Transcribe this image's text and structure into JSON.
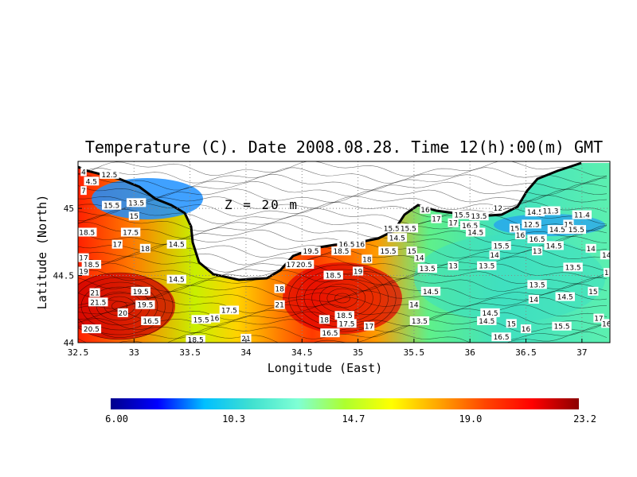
{
  "chart_data": {
    "type": "heatmap",
    "title": "Temperature (C). Date 2008.08.28. Time 12(h):00(m) GMT",
    "xlabel": "Longitude (East)",
    "ylabel": "Latitude (North)",
    "annotation": "Z = 20 m",
    "xlim": [
      32.5,
      37.25
    ],
    "ylim": [
      44.0,
      45.35
    ],
    "x_ticks": [
      32.5,
      33,
      33.5,
      34,
      34.5,
      35,
      35.5,
      36,
      36.5,
      37
    ],
    "x_tick_labels": [
      "32.5",
      "33",
      "33.5",
      "34",
      "34.5",
      "35",
      "35.5",
      "36",
      "36.5",
      "37"
    ],
    "y_ticks": [
      44,
      44.5,
      45
    ],
    "y_tick_labels": [
      "44",
      "44.5",
      "45"
    ],
    "grid": true,
    "colorbar": {
      "min": 6.0,
      "max": 23.2,
      "tick_values": [
        6.0,
        10.3,
        14.7,
        19.0,
        23.2
      ],
      "tick_labels": [
        "6.00",
        "10.3",
        "14.7",
        "19.0",
        "23.2"
      ],
      "colors": [
        "#00008b",
        "#0000ff",
        "#00bfff",
        "#40e0d0",
        "#7fffd4",
        "#adff2f",
        "#ffff00",
        "#ffa500",
        "#ff4500",
        "#ff0000",
        "#8b0000"
      ]
    },
    "contour_labels": [
      {
        "lon": 32.55,
        "lat": 45.27,
        "text": "4"
      },
      {
        "lon": 32.62,
        "lat": 45.2,
        "text": "4.5"
      },
      {
        "lon": 32.78,
        "lat": 45.25,
        "text": "12.5"
      },
      {
        "lon": 32.55,
        "lat": 45.13,
        "text": "7"
      },
      {
        "lon": 33.02,
        "lat": 45.04,
        "text": "13.5"
      },
      {
        "lon": 32.8,
        "lat": 45.02,
        "text": "15.5"
      },
      {
        "lon": 33.0,
        "lat": 44.94,
        "text": "15"
      },
      {
        "lon": 32.58,
        "lat": 44.82,
        "text": "18.5"
      },
      {
        "lon": 32.97,
        "lat": 44.82,
        "text": "17.5"
      },
      {
        "lon": 32.85,
        "lat": 44.73,
        "text": "17"
      },
      {
        "lon": 33.1,
        "lat": 44.7,
        "text": "18"
      },
      {
        "lon": 33.38,
        "lat": 44.73,
        "text": "14.5"
      },
      {
        "lon": 32.55,
        "lat": 44.63,
        "text": "17"
      },
      {
        "lon": 32.62,
        "lat": 44.58,
        "text": "18.5"
      },
      {
        "lon": 32.55,
        "lat": 44.53,
        "text": "19"
      },
      {
        "lon": 33.38,
        "lat": 44.47,
        "text": "14.5"
      },
      {
        "lon": 32.65,
        "lat": 44.37,
        "text": "21"
      },
      {
        "lon": 32.68,
        "lat": 44.3,
        "text": "21.5"
      },
      {
        "lon": 33.06,
        "lat": 44.38,
        "text": "19.5"
      },
      {
        "lon": 33.1,
        "lat": 44.28,
        "text": "19.5"
      },
      {
        "lon": 32.9,
        "lat": 44.22,
        "text": "20"
      },
      {
        "lon": 33.15,
        "lat": 44.16,
        "text": "16.5"
      },
      {
        "lon": 32.62,
        "lat": 44.1,
        "text": "20.5"
      },
      {
        "lon": 33.6,
        "lat": 44.17,
        "text": "15.5"
      },
      {
        "lon": 33.85,
        "lat": 44.24,
        "text": "17.5"
      },
      {
        "lon": 33.72,
        "lat": 44.18,
        "text": "16"
      },
      {
        "lon": 33.55,
        "lat": 44.02,
        "text": "18.5"
      },
      {
        "lon": 34.0,
        "lat": 44.03,
        "text": "21"
      },
      {
        "lon": 34.3,
        "lat": 44.4,
        "text": "18"
      },
      {
        "lon": 34.3,
        "lat": 44.28,
        "text": "21"
      },
      {
        "lon": 34.4,
        "lat": 44.58,
        "text": "17"
      },
      {
        "lon": 34.52,
        "lat": 44.58,
        "text": "20.5"
      },
      {
        "lon": 34.58,
        "lat": 44.68,
        "text": "19.5"
      },
      {
        "lon": 34.9,
        "lat": 44.73,
        "text": "16.5"
      },
      {
        "lon": 35.02,
        "lat": 44.73,
        "text": "16"
      },
      {
        "lon": 34.85,
        "lat": 44.68,
        "text": "18.5"
      },
      {
        "lon": 34.78,
        "lat": 44.5,
        "text": "18.5"
      },
      {
        "lon": 35.0,
        "lat": 44.53,
        "text": "19"
      },
      {
        "lon": 35.08,
        "lat": 44.62,
        "text": "18"
      },
      {
        "lon": 34.7,
        "lat": 44.17,
        "text": "18"
      },
      {
        "lon": 34.9,
        "lat": 44.14,
        "text": "17.5"
      },
      {
        "lon": 34.88,
        "lat": 44.2,
        "text": "18.5"
      },
      {
        "lon": 34.75,
        "lat": 44.07,
        "text": "16.5"
      },
      {
        "lon": 35.1,
        "lat": 44.12,
        "text": "17"
      },
      {
        "lon": 35.3,
        "lat": 44.85,
        "text": "15.5"
      },
      {
        "lon": 35.45,
        "lat": 44.85,
        "text": "15.5"
      },
      {
        "lon": 35.35,
        "lat": 44.78,
        "text": "14.5"
      },
      {
        "lon": 35.27,
        "lat": 44.68,
        "text": "15.5"
      },
      {
        "lon": 35.48,
        "lat": 44.68,
        "text": "15"
      },
      {
        "lon": 35.55,
        "lat": 44.63,
        "text": "14"
      },
      {
        "lon": 35.62,
        "lat": 44.55,
        "text": "13.5"
      },
      {
        "lon": 35.5,
        "lat": 44.28,
        "text": "14"
      },
      {
        "lon": 35.65,
        "lat": 44.38,
        "text": "14.5"
      },
      {
        "lon": 35.55,
        "lat": 44.16,
        "text": "13.5"
      },
      {
        "lon": 35.85,
        "lat": 44.57,
        "text": "13"
      },
      {
        "lon": 35.6,
        "lat": 44.99,
        "text": "16"
      },
      {
        "lon": 35.7,
        "lat": 44.92,
        "text": "17"
      },
      {
        "lon": 35.85,
        "lat": 44.89,
        "text": "17"
      },
      {
        "lon": 35.93,
        "lat": 44.95,
        "text": "15.5"
      },
      {
        "lon": 36.08,
        "lat": 44.94,
        "text": "13.5"
      },
      {
        "lon": 36.0,
        "lat": 44.87,
        "text": "16.5"
      },
      {
        "lon": 36.05,
        "lat": 44.82,
        "text": "14.5"
      },
      {
        "lon": 36.25,
        "lat": 45.0,
        "text": "12"
      },
      {
        "lon": 36.15,
        "lat": 44.57,
        "text": "13.5"
      },
      {
        "lon": 36.22,
        "lat": 44.65,
        "text": "14"
      },
      {
        "lon": 36.28,
        "lat": 44.72,
        "text": "15.5"
      },
      {
        "lon": 36.4,
        "lat": 44.85,
        "text": "15"
      },
      {
        "lon": 36.55,
        "lat": 44.88,
        "text": "12.5"
      },
      {
        "lon": 36.45,
        "lat": 44.8,
        "text": "16"
      },
      {
        "lon": 36.6,
        "lat": 44.77,
        "text": "16.5"
      },
      {
        "lon": 36.6,
        "lat": 44.68,
        "text": "13"
      },
      {
        "lon": 36.58,
        "lat": 44.97,
        "text": "14.5"
      },
      {
        "lon": 36.72,
        "lat": 44.98,
        "text": "11.3"
      },
      {
        "lon": 36.78,
        "lat": 44.84,
        "text": "14.5"
      },
      {
        "lon": 36.88,
        "lat": 44.88,
        "text": "15"
      },
      {
        "lon": 36.95,
        "lat": 44.84,
        "text": "15.5"
      },
      {
        "lon": 37.0,
        "lat": 44.95,
        "text": "11.4"
      },
      {
        "lon": 36.75,
        "lat": 44.72,
        "text": "14.5"
      },
      {
        "lon": 37.08,
        "lat": 44.7,
        "text": "14"
      },
      {
        "lon": 37.25,
        "lat": 44.65,
        "text": "14.5"
      },
      {
        "lon": 36.92,
        "lat": 44.56,
        "text": "13.5"
      },
      {
        "lon": 36.6,
        "lat": 44.43,
        "text": "13.5"
      },
      {
        "lon": 36.57,
        "lat": 44.32,
        "text": "14"
      },
      {
        "lon": 36.85,
        "lat": 44.34,
        "text": "14.5"
      },
      {
        "lon": 37.1,
        "lat": 44.38,
        "text": "15"
      },
      {
        "lon": 36.18,
        "lat": 44.22,
        "text": "14.5"
      },
      {
        "lon": 36.15,
        "lat": 44.16,
        "text": "14.5"
      },
      {
        "lon": 36.37,
        "lat": 44.14,
        "text": "15"
      },
      {
        "lon": 36.5,
        "lat": 44.1,
        "text": "16"
      },
      {
        "lon": 36.28,
        "lat": 44.04,
        "text": "16.5"
      },
      {
        "lon": 36.82,
        "lat": 44.12,
        "text": "15.5"
      },
      {
        "lon": 37.15,
        "lat": 44.18,
        "text": "17"
      },
      {
        "lon": 37.22,
        "lat": 44.14,
        "text": "16"
      },
      {
        "lon": 37.22,
        "lat": 44.52,
        "text": "1"
      }
    ]
  }
}
